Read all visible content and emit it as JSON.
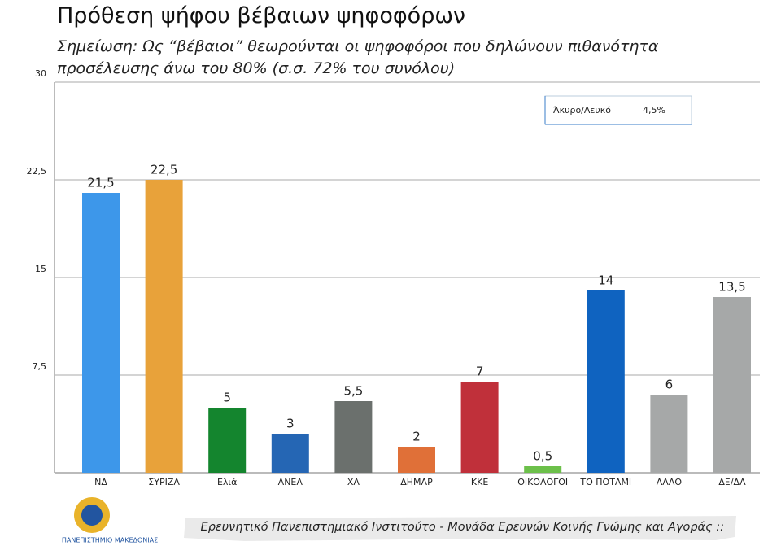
{
  "chart_data": {
    "type": "bar",
    "title": "Πρόθεση ψήφου βέβαιων ψηφοφόρων",
    "subtitle": "Σημείωση: Ως “βέβαιοι” θεωρούνται οι ψηφοφόροι που δηλώνουν πιθανότητα προσέλευσης άνω του 80% (σ.σ. 72% του συνόλου)",
    "categories": [
      "ΝΔ",
      "ΣΥΡΙΖΑ",
      "Ελιά",
      "ΑΝΕΛ",
      "ΧΑ",
      "ΔΗΜΑΡ",
      "ΚΚΕ",
      "ΟΙΚΟΛΟΓΟΙ",
      "ΤΟ ΠΟΤΑΜΙ",
      "ΑΛΛΟ",
      "ΔΞ/ΔΑ"
    ],
    "values": [
      21.5,
      22.5,
      5,
      3,
      5.5,
      2,
      7,
      0.5,
      14,
      6,
      13.5
    ],
    "value_labels": [
      "21,5",
      "22,5",
      "5",
      "3",
      "5,5",
      "2",
      "7",
      "0,5",
      "14",
      "6",
      "13,5"
    ],
    "colors": [
      "#3d97ea",
      "#e8a23a",
      "#14852e",
      "#2566b4",
      "#6b706d",
      "#e07038",
      "#c0303a",
      "#6cc04a",
      "#0f63c0",
      "#a6a8a8",
      "#a6a8a8"
    ],
    "ylim": [
      0,
      30
    ],
    "yticks": [
      {
        "value": 7.5,
        "label": "7,5"
      },
      15,
      {
        "value": 22.5,
        "label": "22,5"
      },
      30
    ],
    "grid": true,
    "annotation": {
      "label": "Άκυρο/Λευκό",
      "value": "4,5%"
    },
    "footer": "Ερευνητικό Πανεπιστημιακό Ινστιτούτο - Μονάδα Ερευνών Κοινής Γνώμης και Αγοράς ::",
    "logo_text": "ΠΑΝΕΠΙΣΤΗΜΙΟ ΜΑΚΕΔΟΝΙΑΣ"
  }
}
